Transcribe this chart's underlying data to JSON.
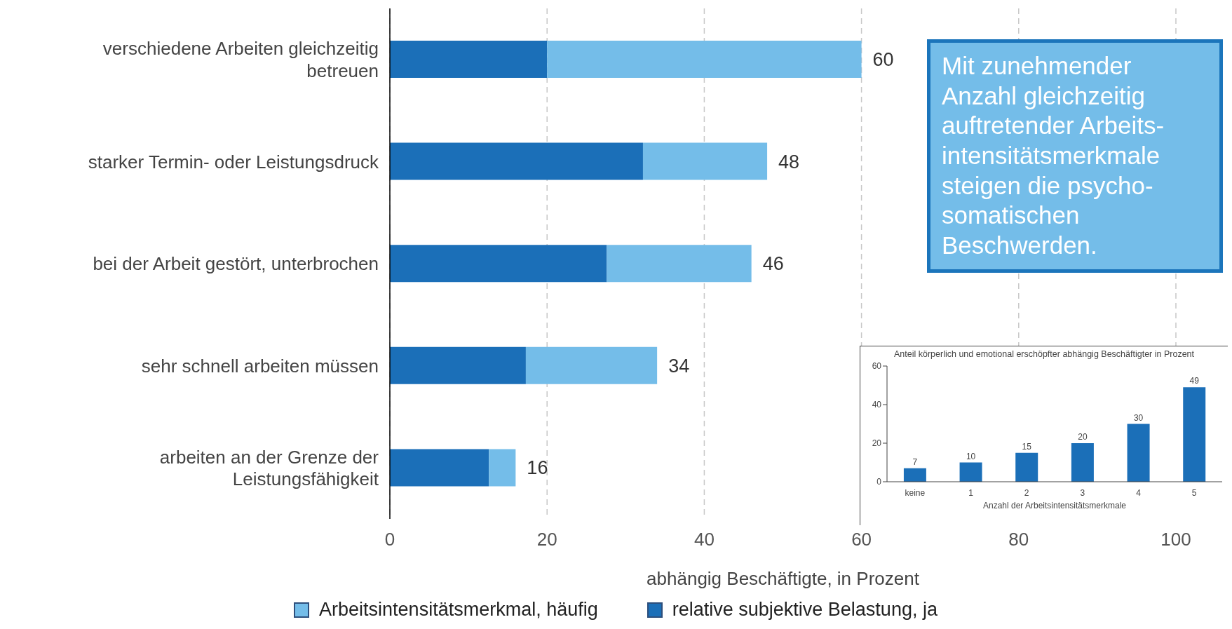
{
  "chart_data": [
    {
      "type": "bar",
      "orientation": "horizontal",
      "stacked": true,
      "categories": [
        "verschiedene Arbeiten gleichzeitig betreuen",
        "starker Termin- oder Leistungsdruck",
        "bei der Arbeit gestört, unterbrochen",
        "sehr schnell arbeiten müssen",
        "arbeiten an der Grenze der Leistungsfähigkeit"
      ],
      "series": [
        {
          "name": "relative subjektive Belastung, ja",
          "color": "#1b6fb8",
          "values": [
            20,
            32.2,
            27.6,
            17.3,
            12.6
          ]
        },
        {
          "name": "Arbeitsintensitätsmerkmal, häufig",
          "color": "#74bde9",
          "values": [
            40,
            15.8,
            18.4,
            16.7,
            3.4
          ]
        }
      ],
      "totals": [
        "60",
        "48",
        "46",
        "34",
        "16"
      ],
      "xlim": [
        0,
        100
      ],
      "xticks": [
        0,
        20,
        40,
        60,
        80,
        100
      ],
      "xlabel": "abhängig Beschäftigte, in Prozent",
      "grid": "x",
      "legend": "bottom",
      "annotations": [
        "Mit zunehmender\nAnzahl gleichzeitig\nauftretender Arbeits-\nintensitätsmerkmale\nsteigen die psycho-\nsomatischen\nBeschwerden."
      ]
    },
    {
      "type": "bar",
      "title": "Anteil körperlich und emotional erschöpfter abhängig Beschäftigter in Prozent",
      "categories": [
        "keine",
        "1",
        "2",
        "3",
        "4",
        "5"
      ],
      "values": [
        7,
        10,
        15,
        20,
        30,
        49
      ],
      "color": "#1b6fb8",
      "ylim": [
        0,
        60
      ],
      "yticks": [
        0,
        20,
        40,
        60
      ],
      "data_labels": true,
      "xlabel": "Anzahl der Arbeitsintensitätsmerkmale"
    }
  ]
}
